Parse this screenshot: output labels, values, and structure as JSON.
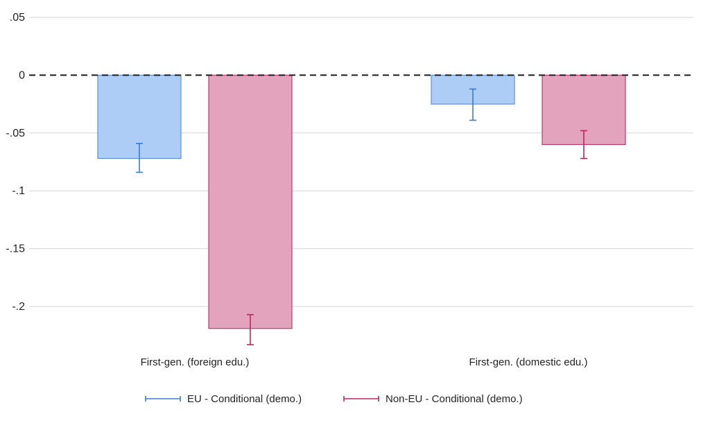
{
  "chart_data": {
    "type": "bar",
    "categories": [
      "First-gen. (foreign edu.)",
      "First-gen. (domestic edu.)"
    ],
    "series": [
      {
        "name": "EU - Conditional (demo.)",
        "values": [
          -0.072,
          -0.025
        ],
        "ci_low": [
          -0.084,
          -0.039
        ],
        "ci_high": [
          -0.059,
          -0.012
        ],
        "fill": "#adcdf7",
        "stroke": "#5b8fd6",
        "errorbar": "#3a7bd5"
      },
      {
        "name": "Non-EU - Conditional (demo.)",
        "values": [
          -0.219,
          -0.06
        ],
        "ci_low": [
          -0.233,
          -0.072
        ],
        "ci_high": [
          -0.207,
          -0.048
        ],
        "fill": "#e3a3bc",
        "stroke": "#b83a6a",
        "errorbar": "#b8265d"
      }
    ],
    "yticks": [
      {
        "value": 0.05,
        "label": ".05"
      },
      {
        "value": 0,
        "label": "0"
      },
      {
        "value": -0.05,
        "label": "-.05"
      },
      {
        "value": -0.1,
        "label": "-.1"
      },
      {
        "value": -0.15,
        "label": "-.15"
      },
      {
        "value": -0.2,
        "label": "-.2"
      }
    ],
    "ylim": [
      -0.24,
      0.05
    ],
    "title": "",
    "xlabel": "",
    "ylabel": "",
    "grid": true,
    "zero_line": "dashed",
    "legend_position": "bottom"
  }
}
